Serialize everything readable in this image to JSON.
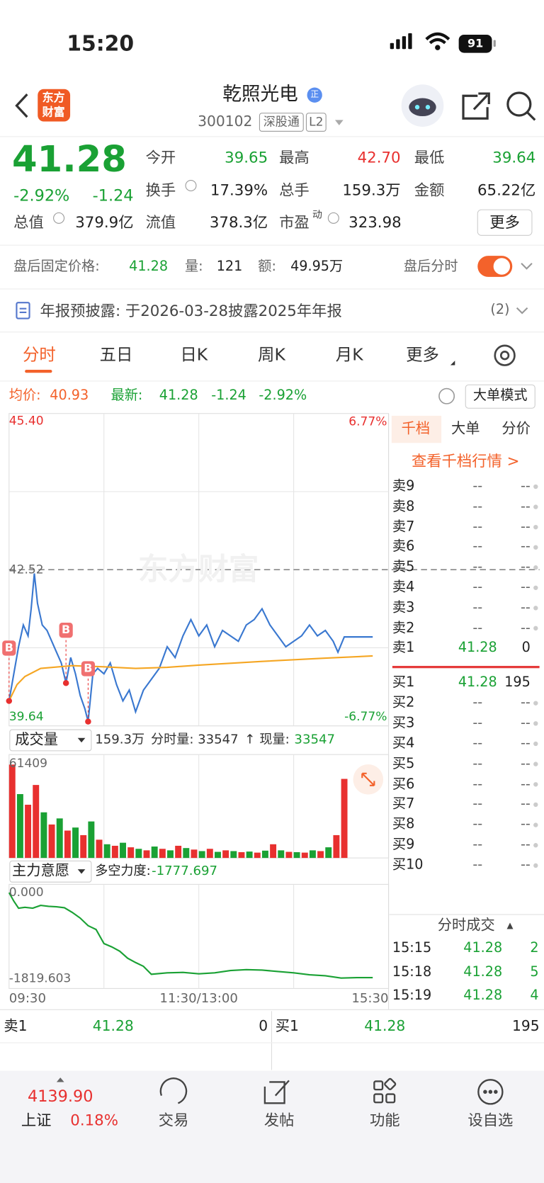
{
  "status": {
    "time": "15:20",
    "battery": "91"
  },
  "header": {
    "logo": [
      "东方",
      "财富"
    ],
    "name": "乾照光电",
    "badge": "正",
    "code": "300102",
    "tags": [
      "深股通",
      "L2"
    ]
  },
  "quote": {
    "price": "41.28",
    "change_pct": "-2.92%",
    "change": "-1.24",
    "more": "更多",
    "fields": [
      {
        "label": "今开",
        "value": "39.65",
        "color": "#1aa134"
      },
      {
        "label": "最高",
        "value": "42.70",
        "color": "#e8302f"
      },
      {
        "label": "最低",
        "value": "39.64",
        "color": "#1aa134"
      },
      {
        "label": "换手",
        "value": "17.39%",
        "color": "#222"
      },
      {
        "label": "总手",
        "value": "159.3万",
        "color": "#222"
      },
      {
        "label": "金额",
        "value": "65.22亿",
        "color": "#222"
      },
      {
        "label": "总值",
        "value": "379.9亿",
        "color": "#222"
      },
      {
        "label": "流值",
        "value": "378.3亿",
        "color": "#222"
      },
      {
        "label": "市盈",
        "sup": "动",
        "value": "323.98",
        "color": "#222"
      }
    ]
  },
  "after_hours": {
    "label": "盘后固定价格:",
    "price": "41.28",
    "volume_label": "量:",
    "volume": "121",
    "amount_label": "额:",
    "amount": "49.95万",
    "toggle_label": "盘后分时"
  },
  "notice": {
    "text": "年报预披露: 于2026-03-28披露2025年年报",
    "count": "(2)"
  },
  "tabs": [
    "分时",
    "五日",
    "日K",
    "周K",
    "月K",
    "更多"
  ],
  "info_bar": {
    "avg_label": "均价:",
    "avg": "40.93",
    "latest_label": "最新:",
    "latest": "41.28",
    "change": "-1.24",
    "change_pct": "-2.92%",
    "mode": "大单模式"
  },
  "watermark": "东方财富",
  "chart_data": [
    {
      "type": "line",
      "xlim": [
        0,
        240
      ],
      "ylim": [
        39.64,
        45.4
      ],
      "yticks": [
        {
          "value": 45.4,
          "label": "45.40"
        },
        42.52,
        39.64
      ],
      "ygrid": [
        43.96,
        41.08
      ],
      "xgrid": [
        60,
        120,
        180
      ],
      "y2lim": [
        -6.77,
        6.77
      ],
      "y2ticks": [
        {
          "value": 6.77,
          "label": "6.77%"
        },
        {
          "value": -6.77,
          "label": "-6.77%"
        }
      ],
      "reference": 42.52,
      "series": [
        {
          "color": "#3a78d0",
          "x": [
            0,
            3,
            6,
            9,
            12,
            14,
            16,
            18,
            21,
            24,
            27,
            30,
            33,
            36,
            39,
            42,
            45,
            48,
            50,
            53,
            56,
            60,
            64,
            68,
            72,
            76,
            80,
            85,
            90,
            95,
            100,
            105,
            110,
            115,
            120,
            125,
            130,
            135,
            140,
            145,
            150,
            155,
            160,
            165,
            170,
            175,
            180,
            185,
            190,
            195,
            200,
            205,
            208,
            212,
            216,
            230
          ],
          "values": [
            40.1,
            40.6,
            41.1,
            41.5,
            41.3,
            41.8,
            42.45,
            41.9,
            41.5,
            41.4,
            41.2,
            41.0,
            40.8,
            40.43,
            40.9,
            40.6,
            40.2,
            39.95,
            39.72,
            40.6,
            40.7,
            40.6,
            40.8,
            40.4,
            40.1,
            40.3,
            39.9,
            40.3,
            40.5,
            40.7,
            41.1,
            40.9,
            41.3,
            41.6,
            41.3,
            41.5,
            41.1,
            41.4,
            41.3,
            41.2,
            41.5,
            41.6,
            41.8,
            41.5,
            41.3,
            41.1,
            41.2,
            41.3,
            41.5,
            41.3,
            41.4,
            41.2,
            41.0,
            41.28,
            41.28,
            41.28
          ]
        },
        {
          "color": "#f5a623",
          "x": [
            0,
            5,
            10,
            20,
            40,
            60,
            80,
            100,
            120,
            160,
            200,
            230
          ],
          "values": [
            40.1,
            40.4,
            40.55,
            40.7,
            40.75,
            40.73,
            40.7,
            40.72,
            40.76,
            40.83,
            40.89,
            40.93
          ]
        }
      ],
      "markers": [
        {
          "x": 0,
          "value": 40.1,
          "label": "B"
        },
        {
          "x": 36,
          "value": 40.43,
          "label": "B"
        },
        {
          "x": 50,
          "value": 39.72,
          "label": "B"
        }
      ]
    },
    {
      "type": "bar",
      "title": "成交量",
      "total": "159.3万",
      "period_label": "分时量:",
      "period_volume": "33547",
      "arrow": "↑",
      "current_label": "现量:",
      "current_volume": "33547",
      "xlim": [
        0,
        240
      ],
      "ylim": [
        0,
        68000
      ],
      "yticks": [
        61409
      ],
      "xgrid": [
        60,
        120,
        180
      ],
      "x": [
        0,
        5,
        10,
        15,
        20,
        25,
        30,
        35,
        40,
        45,
        50,
        55,
        60,
        65,
        70,
        75,
        80,
        85,
        90,
        95,
        100,
        105,
        110,
        115,
        120,
        125,
        130,
        135,
        140,
        145,
        150,
        155,
        160,
        165,
        170,
        175,
        180,
        185,
        190,
        195,
        200,
        205,
        210
      ],
      "series": [
        {
          "color": "#e8302f",
          "values": [
            61409,
            null,
            35000,
            48000,
            null,
            22000,
            null,
            18000,
            null,
            15000,
            null,
            12000,
            null,
            8000,
            null,
            7000,
            null,
            5000,
            null,
            6000,
            null,
            8000,
            null,
            5500,
            null,
            6000,
            null,
            5000,
            null,
            3800,
            null,
            3500,
            null,
            9000,
            null,
            4000,
            null,
            3500,
            null,
            4500,
            null,
            15000,
            52000
          ]
        },
        {
          "color": "#1aa134",
          "values": [
            null,
            42000,
            null,
            null,
            30000,
            null,
            26000,
            null,
            20000,
            null,
            24000,
            null,
            9000,
            null,
            10000,
            null,
            6000,
            null,
            7500,
            null,
            5000,
            null,
            6500,
            null,
            4500,
            null,
            4000,
            null,
            4500,
            null,
            4200,
            null,
            4800,
            null,
            5000,
            null,
            3800,
            null,
            5000,
            null,
            7000,
            null,
            null
          ]
        }
      ]
    },
    {
      "type": "line",
      "title": "主力意愿",
      "value_label": "多空力度:",
      "value": "-1777.697",
      "xlim": [
        0,
        240
      ],
      "ylim": [
        -2030,
        175
      ],
      "yticks": [
        {
          "value": 0,
          "label": "0.000"
        },
        -1819.603
      ],
      "xgrid": [
        60,
        120,
        180
      ],
      "xticks": [
        {
          "value": 0,
          "label": "09:30"
        },
        {
          "value": 120,
          "label": "11:30/13:00"
        },
        {
          "value": 240,
          "label": "15:30"
        }
      ],
      "series": [
        {
          "color": "#1aa134",
          "x": [
            0,
            3,
            6,
            10,
            15,
            20,
            25,
            30,
            35,
            40,
            45,
            50,
            55,
            60,
            65,
            70,
            75,
            80,
            85,
            90,
            100,
            110,
            120,
            130,
            140,
            150,
            160,
            170,
            180,
            190,
            200,
            210,
            220,
            230
          ],
          "values": [
            0,
            -180,
            -330,
            -310,
            -330,
            -270,
            -290,
            -300,
            -320,
            -420,
            -540,
            -700,
            -780,
            -1080,
            -1150,
            -1240,
            -1390,
            -1480,
            -1560,
            -1730,
            -1700,
            -1690,
            -1720,
            -1700,
            -1650,
            -1630,
            -1640,
            -1670,
            -1700,
            -1740,
            -1760,
            -1810,
            -1800,
            -1800
          ]
        }
      ]
    }
  ],
  "order_book": {
    "tabs": [
      "千档",
      "大单",
      "分价"
    ],
    "link": "查看千档行情 >",
    "sells": [
      {
        "label": "卖9",
        "price": "--",
        "volume": "--"
      },
      {
        "label": "卖8",
        "price": "--",
        "volume": "--"
      },
      {
        "label": "卖7",
        "price": "--",
        "volume": "--"
      },
      {
        "label": "卖6",
        "price": "--",
        "volume": "--"
      },
      {
        "label": "卖5",
        "price": "--",
        "volume": "--"
      },
      {
        "label": "卖4",
        "price": "--",
        "volume": "--"
      },
      {
        "label": "卖3",
        "price": "--",
        "volume": "--"
      },
      {
        "label": "卖2",
        "price": "--",
        "volume": "--"
      },
      {
        "label": "卖1",
        "price": "41.28",
        "volume": "0"
      }
    ],
    "buys": [
      {
        "label": "买1",
        "price": "41.28",
        "volume": "195"
      },
      {
        "label": "买2",
        "price": "--",
        "volume": "--"
      },
      {
        "label": "买3",
        "price": "--",
        "volume": "--"
      },
      {
        "label": "买4",
        "price": "--",
        "volume": "--"
      },
      {
        "label": "买5",
        "price": "--",
        "volume": "--"
      },
      {
        "label": "买6",
        "price": "--",
        "volume": "--"
      },
      {
        "label": "买7",
        "price": "--",
        "volume": "--"
      },
      {
        "label": "买8",
        "price": "--",
        "volume": "--"
      },
      {
        "label": "买9",
        "price": "--",
        "volume": "--"
      },
      {
        "label": "买10",
        "price": "--",
        "volume": "--"
      }
    ]
  },
  "trades": {
    "title": "分时成交",
    "arrow": "▲",
    "rows": [
      [
        "15:15",
        "41.28",
        "2"
      ],
      [
        "15:18",
        "41.28",
        "5"
      ],
      [
        "15:19",
        "41.28",
        "4"
      ]
    ]
  },
  "bottom_bar": {
    "sell_label": "卖1",
    "sell_price": "41.28",
    "sell_volume": "0",
    "buy_label": "买1",
    "buy_price": "41.28",
    "buy_volume": "195"
  },
  "nav": {
    "index_value": "4139.90",
    "index_name": "上证",
    "index_change": "0.18%",
    "items": [
      "交易",
      "发帖",
      "功能",
      "设自选"
    ]
  }
}
